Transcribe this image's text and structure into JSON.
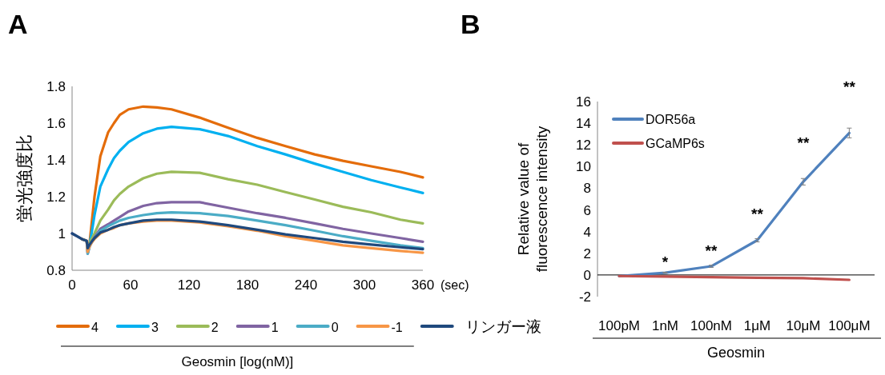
{
  "chart_data": [
    {
      "type": "line",
      "title": "A",
      "xlabel": "(sec)",
      "ylabel": "蛍光強度比",
      "legend_title": "Geosmin [log(nM)]",
      "legend": "bottom",
      "marker": "none",
      "line_style": "solid",
      "xlim": [
        0,
        360
      ],
      "xticks": [
        0,
        60,
        120,
        180,
        240,
        300,
        360
      ],
      "ylim": [
        0.8,
        1.8
      ],
      "yticks": [
        0.8,
        1,
        1.2,
        1.4,
        1.6,
        1.8
      ],
      "x": [
        0,
        5,
        10,
        15,
        16,
        18,
        20,
        23,
        29,
        37,
        43,
        49,
        58,
        73,
        87,
        102,
        131,
        160,
        190,
        219,
        249,
        278,
        307,
        337,
        360
      ],
      "series": [
        {
          "name": "4",
          "color": "#e46c0a",
          "values": [
            null,
            null,
            0.97,
            0.96,
            0.92,
            0.95,
            1.05,
            1.2,
            1.42,
            1.55,
            1.6,
            1.645,
            1.675,
            1.69,
            1.685,
            1.675,
            1.63,
            1.575,
            1.52,
            1.475,
            1.43,
            1.395,
            1.365,
            1.335,
            1.305
          ]
        },
        {
          "name": "3",
          "color": "#00b0f0",
          "values": [
            null,
            null,
            null,
            null,
            0.91,
            0.94,
            1.0,
            1.1,
            1.255,
            1.35,
            1.41,
            1.45,
            1.497,
            1.545,
            1.57,
            1.58,
            1.567,
            1.53,
            1.475,
            1.43,
            1.38,
            1.335,
            1.29,
            1.25,
            1.22
          ]
        },
        {
          "name": "2",
          "color": "#9bbb59",
          "values": [
            null,
            null,
            0.97,
            0.96,
            0.9,
            0.94,
            0.97,
            1.0,
            1.07,
            1.13,
            1.18,
            1.215,
            1.255,
            1.3,
            1.325,
            1.335,
            1.33,
            1.295,
            1.265,
            1.225,
            1.185,
            1.145,
            1.115,
            1.075,
            1.055
          ]
        },
        {
          "name": "1",
          "color": "#8064a2",
          "values": [
            1.0,
            0.985,
            0.97,
            0.96,
            0.89,
            0.93,
            0.95,
            0.98,
            1.025,
            1.05,
            1.07,
            1.09,
            1.12,
            1.15,
            1.165,
            1.17,
            1.17,
            1.14,
            1.11,
            1.085,
            1.055,
            1.025,
            1.0,
            0.975,
            0.955
          ]
        },
        {
          "name": "0",
          "color": "#4bacc6",
          "values": [
            null,
            null,
            0.97,
            0.96,
            0.89,
            0.93,
            0.95,
            0.975,
            1.015,
            1.04,
            1.055,
            1.07,
            1.085,
            1.1,
            1.11,
            1.115,
            1.11,
            1.095,
            1.07,
            1.045,
            1.015,
            0.985,
            0.96,
            0.935,
            0.92
          ]
        },
        {
          "name": "-1",
          "color": "#f79646",
          "values": [
            null,
            null,
            0.97,
            0.96,
            0.9,
            0.93,
            0.95,
            0.97,
            1.0,
            1.02,
            1.03,
            1.045,
            1.055,
            1.065,
            1.07,
            1.07,
            1.06,
            1.04,
            1.015,
            0.985,
            0.96,
            0.935,
            0.92,
            0.905,
            0.895
          ]
        },
        {
          "name": "リンガー液",
          "color": "#1f497d",
          "values": [
            1.0,
            0.985,
            0.97,
            0.96,
            0.92,
            0.94,
            0.955,
            0.975,
            1.005,
            1.02,
            1.035,
            1.045,
            1.055,
            1.07,
            1.075,
            1.075,
            1.065,
            1.045,
            1.02,
            0.995,
            0.975,
            0.955,
            0.94,
            0.925,
            0.915
          ]
        }
      ]
    },
    {
      "type": "line",
      "title": "B",
      "xlabel": "Geosmin",
      "ylabel": "Relative value of fluorescence intensity",
      "legend": "top left",
      "marker": "none",
      "line_style": "solid",
      "ylim": [
        -2,
        16
      ],
      "yticks": [
        -2,
        0,
        2,
        4,
        6,
        8,
        10,
        12,
        14,
        16
      ],
      "categories": [
        "100pM",
        "1nM",
        "100nM",
        "1μM",
        "10μM",
        "100μM"
      ],
      "series": [
        {
          "name": "DOR56a",
          "color": "#4f81bd",
          "values": [
            -0.1,
            0.2,
            0.8,
            3.2,
            8.6,
            13.1
          ],
          "errors": [
            null,
            0.05,
            0.1,
            0.15,
            0.3,
            0.45
          ]
        },
        {
          "name": "GCaMP6s",
          "color": "#c0504d",
          "values": [
            -0.1,
            -0.15,
            -0.2,
            -0.25,
            -0.3,
            -0.45
          ]
        }
      ],
      "annotations": [
        {
          "text": "*",
          "x": "1nM",
          "y": 0.2
        },
        {
          "text": "**",
          "x": "100nM",
          "y": 0.8
        },
        {
          "text": "**",
          "x": "1μM",
          "y": 3.2
        },
        {
          "text": "**",
          "x": "10μM",
          "y": 8.6
        },
        {
          "text": "**",
          "x": "100μM",
          "y": 13.1
        }
      ]
    }
  ]
}
